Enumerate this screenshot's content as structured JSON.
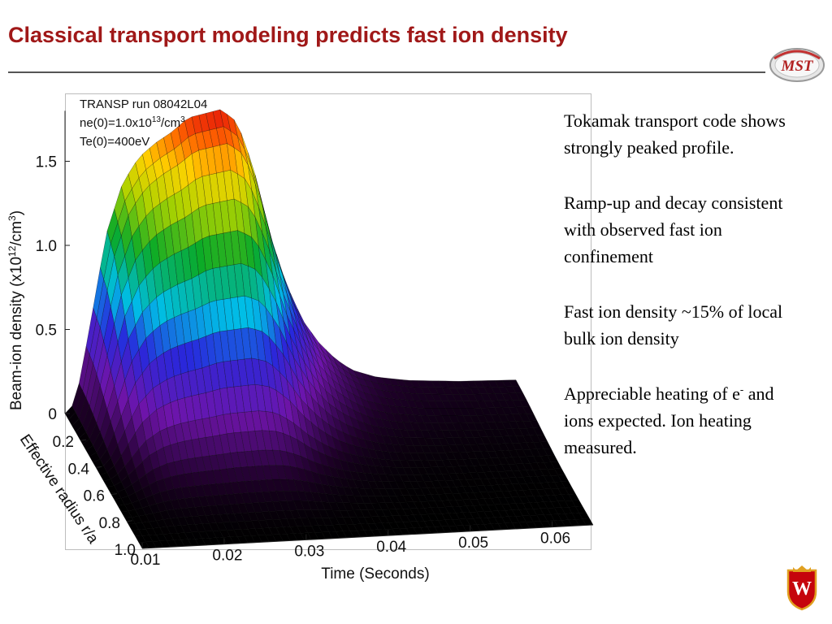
{
  "slide": {
    "title": "Classical transport modeling predicts fast ion density",
    "logo_text": "MST",
    "crest_letter": "W"
  },
  "chart_data": {
    "type": "surface",
    "annotation": [
      "TRANSP run 08042L04",
      "ne(0)=1.0x10",
      "13",
      "/cm",
      "3",
      "Te(0)=400eV"
    ],
    "zlabel": {
      "main": "Beam-ion density (x10",
      "exp": "12",
      "mid": "/cm",
      "exp2": "3",
      "end": ")"
    },
    "xlabel": "Time (Seconds)",
    "ylabel": "Effective radius r/a",
    "xlim": [
      0.01,
      0.065
    ],
    "ylim": [
      0.0,
      1.0
    ],
    "zlim": [
      0.0,
      1.8
    ],
    "x_ticks": [
      "0.01",
      "0.02",
      "0.03",
      "0.04",
      "0.05",
      "0.06"
    ],
    "y_ticks": [
      "0.2",
      "0.4",
      "0.6",
      "0.8",
      "1.0"
    ],
    "z_ticks": [
      "0",
      "0.5",
      "1.0",
      "1.5"
    ],
    "time_profile": [
      {
        "t": 0.01,
        "n": 0.0
      },
      {
        "t": 0.0105,
        "n": 0.0
      },
      {
        "t": 0.0115,
        "n": 0.12
      },
      {
        "t": 0.013,
        "n": 0.5
      },
      {
        "t": 0.015,
        "n": 1.05
      },
      {
        "t": 0.017,
        "n": 1.35
      },
      {
        "t": 0.019,
        "n": 1.5
      },
      {
        "t": 0.021,
        "n": 1.58
      },
      {
        "t": 0.023,
        "n": 1.64
      },
      {
        "t": 0.025,
        "n": 1.72
      },
      {
        "t": 0.027,
        "n": 1.74
      },
      {
        "t": 0.029,
        "n": 1.76
      },
      {
        "t": 0.031,
        "n": 1.68
      },
      {
        "t": 0.033,
        "n": 1.4
      },
      {
        "t": 0.035,
        "n": 1.0
      },
      {
        "t": 0.037,
        "n": 0.7
      },
      {
        "t": 0.039,
        "n": 0.48
      },
      {
        "t": 0.041,
        "n": 0.34
      },
      {
        "t": 0.043,
        "n": 0.24
      },
      {
        "t": 0.045,
        "n": 0.17
      },
      {
        "t": 0.048,
        "n": 0.12
      },
      {
        "t": 0.052,
        "n": 0.09
      },
      {
        "t": 0.058,
        "n": 0.07
      },
      {
        "t": 0.065,
        "n": 0.06
      }
    ],
    "radial_profile": [
      {
        "r": 0.0,
        "f": 1.0
      },
      {
        "r": 0.1,
        "f": 0.92
      },
      {
        "r": 0.2,
        "f": 0.75
      },
      {
        "r": 0.3,
        "f": 0.55
      },
      {
        "r": 0.4,
        "f": 0.36
      },
      {
        "r": 0.5,
        "f": 0.21
      },
      {
        "r": 0.6,
        "f": 0.11
      },
      {
        "r": 0.7,
        "f": 0.05
      },
      {
        "r": 0.8,
        "f": 0.02
      },
      {
        "r": 0.9,
        "f": 0.005
      },
      {
        "r": 1.0,
        "f": 0.0
      }
    ]
  },
  "bullets": [
    {
      "text": "Tokamak transport code shows strongly peaked profile.",
      "sup": "",
      "tail": ""
    },
    {
      "text": "Ramp-up and decay consistent with observed fast ion confinement",
      "sup": "",
      "tail": ""
    },
    {
      "text": "Fast ion density ~15% of local bulk ion density",
      "sup": "",
      "tail": ""
    },
    {
      "text": "Appreciable heating of e",
      "sup": "-",
      "tail": " and ions expected.  Ion heating measured."
    }
  ]
}
